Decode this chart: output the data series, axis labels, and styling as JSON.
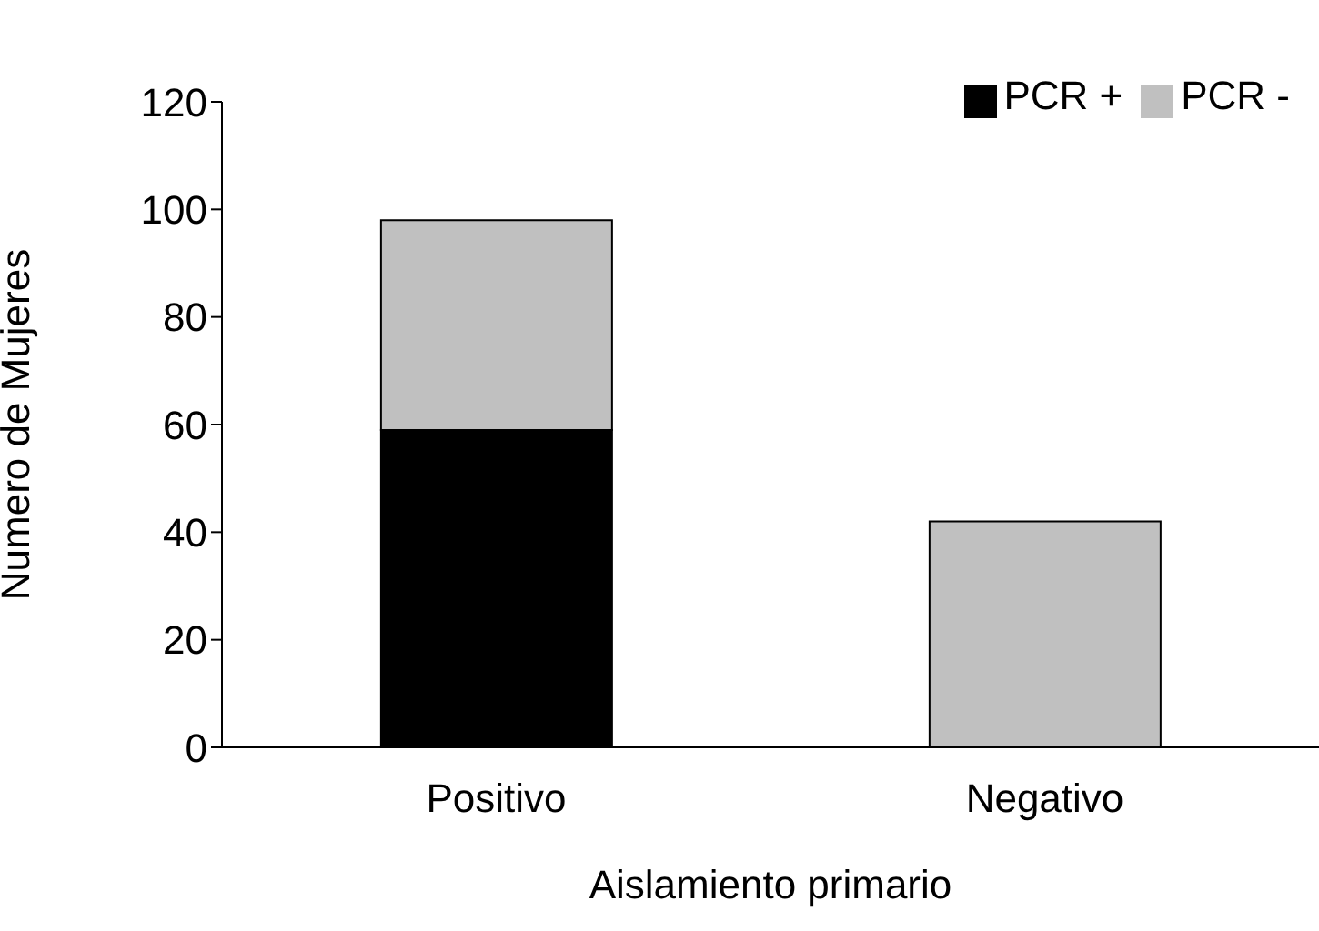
{
  "chart_data": {
    "type": "bar",
    "stacked": true,
    "xlabel": "Aislamiento primario",
    "ylabel": "Numero de Mujeres",
    "categories": [
      "Positivo",
      "Negativo"
    ],
    "series": [
      {
        "name": "PCR +",
        "color": "#000000",
        "values": [
          59,
          null
        ]
      },
      {
        "name": "PCR -",
        "color": "#c0c0c0",
        "values": [
          39,
          42
        ]
      }
    ],
    "ylim": [
      0,
      120
    ],
    "yticks": [
      0,
      20,
      40,
      60,
      80,
      100,
      120
    ],
    "grid": false,
    "legend": "top right"
  }
}
